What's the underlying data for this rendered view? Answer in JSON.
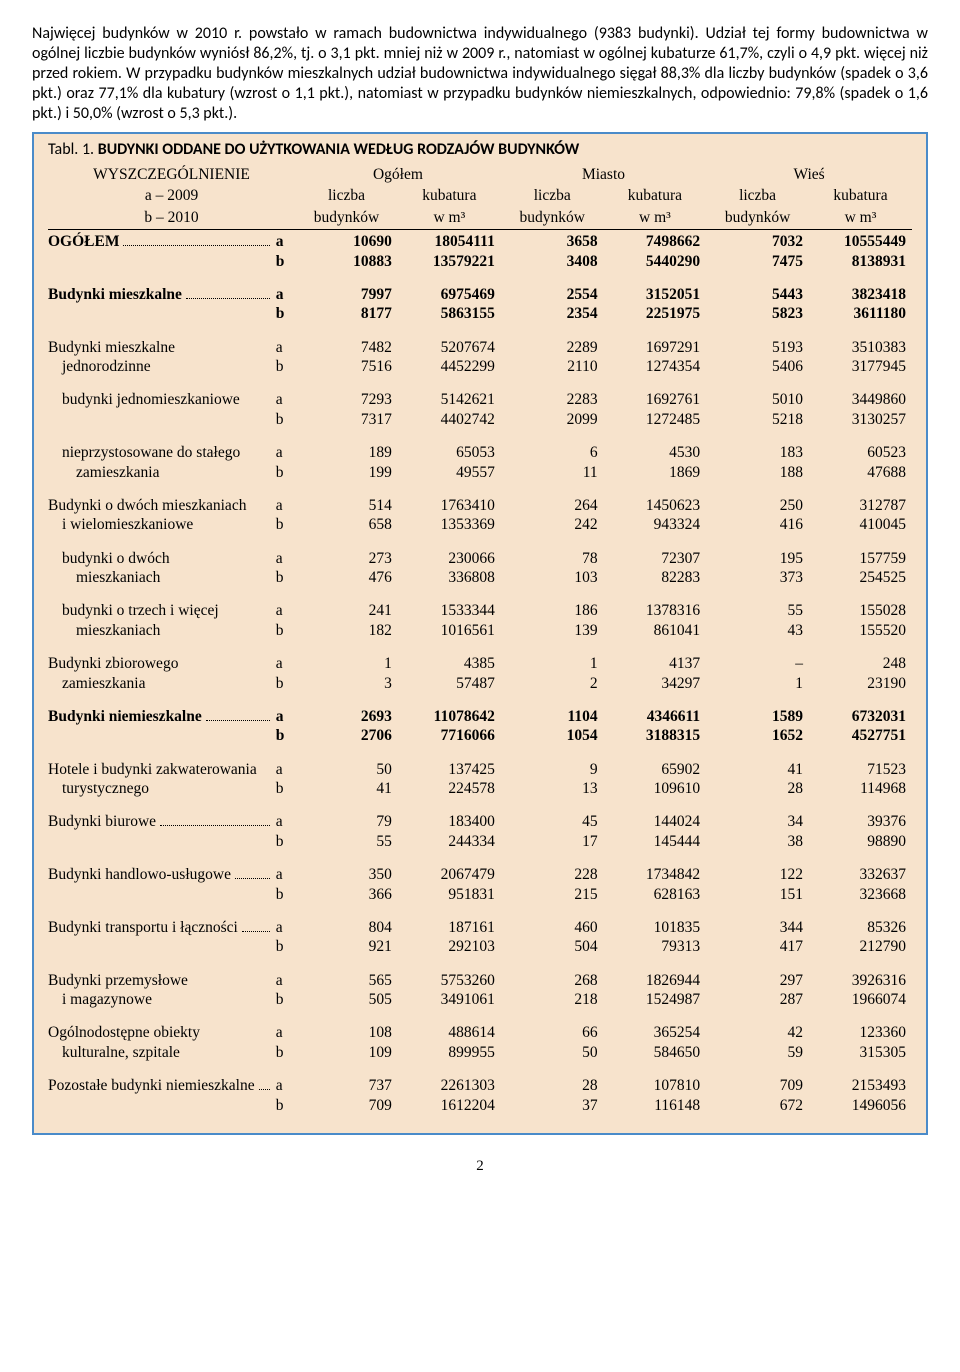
{
  "paragraphs": [
    "Najwięcej budynków w 2010 r. powstało w ramach budownictwa indywidualnego (9383 budynki). Udział tej formy budownictwa w ogólnej liczbie budynków wyniósł 86,2%, tj. o 3,1 pkt. mniej niż w 2009 r., natomiast w ogólnej kubaturze 61,7%, czyli o 4,9 pkt. więcej niż przed rokiem. W przypadku budynków mieszkalnych udział budownictwa indywidualnego sięgał 88,3% dla liczby budynków (spadek o 3,6 pkt.) oraz 77,1% dla kubatury (wzrost o 1,1 pkt.), natomiast w przypadku budynków niemieszkalnych, odpowiednio: 79,8% (spadek o 1,6 pkt.) i 50,0% (wzrost o 5,3 pkt.)."
  ],
  "table_label": "Tabl. 1.",
  "table_caption": "BUDYNKI ODDANE DO UŻYTKOWANIA WEDŁUG RODZAJÓW BUDYNKÓW",
  "header": {
    "spec": "WYSZCZEGÓLNIENIE",
    "a": "a – 2009",
    "b": "b – 2010",
    "groups": [
      "Ogółem",
      "Miasto",
      "Wieś"
    ],
    "sub1": "liczba",
    "sub1b": "budynków",
    "sub2": "kubatura",
    "sub2b": "w m³"
  },
  "rows": [
    {
      "label": "OGÓŁEM",
      "bold": true,
      "dotted": true,
      "indent": 0,
      "a": [
        "10690",
        "18054111",
        "3658",
        "7498662",
        "7032",
        "10555449"
      ],
      "b": [
        "10883",
        "13579221",
        "3408",
        "5440290",
        "7475",
        "8138931"
      ]
    },
    {
      "label": "Budynki mieszkalne",
      "bold": true,
      "dotted": true,
      "indent": 0,
      "a": [
        "7997",
        "6975469",
        "2554",
        "3152051",
        "5443",
        "3823418"
      ],
      "b": [
        "8177",
        "5863155",
        "2354",
        "2251975",
        "5823",
        "3611180"
      ]
    },
    {
      "label": "Budynki mieszkalne",
      "label2": "jednorodzinne",
      "indent": 0,
      "a": [
        "7482",
        "5207674",
        "2289",
        "1697291",
        "5193",
        "3510383"
      ],
      "b": [
        "7516",
        "4452299",
        "2110",
        "1274354",
        "5406",
        "3177945"
      ]
    },
    {
      "label": "budynki jednomieszkaniowe",
      "indent": 1,
      "a": [
        "7293",
        "5142621",
        "2283",
        "1692761",
        "5010",
        "3449860"
      ],
      "b": [
        "7317",
        "4402742",
        "2099",
        "1272485",
        "5218",
        "3130257"
      ]
    },
    {
      "label": "nieprzystosowane do stałego",
      "label2": "zamieszkania",
      "indent": 1,
      "a": [
        "189",
        "65053",
        "6",
        "4530",
        "183",
        "60523"
      ],
      "b": [
        "199",
        "49557",
        "11",
        "1869",
        "188",
        "47688"
      ]
    },
    {
      "label": "Budynki o dwóch mieszkaniach",
      "label2": "i wielomieszkaniowe",
      "indent": 0,
      "a": [
        "514",
        "1763410",
        "264",
        "1450623",
        "250",
        "312787"
      ],
      "b": [
        "658",
        "1353369",
        "242",
        "943324",
        "416",
        "410045"
      ]
    },
    {
      "label": "budynki o dwóch",
      "label2": "mieszkaniach",
      "indent": 1,
      "a": [
        "273",
        "230066",
        "78",
        "72307",
        "195",
        "157759"
      ],
      "b": [
        "476",
        "336808",
        "103",
        "82283",
        "373",
        "254525"
      ]
    },
    {
      "label": "budynki o trzech i więcej",
      "label2": "mieszkaniach",
      "indent": 1,
      "a": [
        "241",
        "1533344",
        "186",
        "1378316",
        "55",
        "155028"
      ],
      "b": [
        "182",
        "1016561",
        "139",
        "861041",
        "43",
        "155520"
      ]
    },
    {
      "label": "Budynki zbiorowego",
      "label2": "zamieszkania",
      "indent": 0,
      "a": [
        "1",
        "4385",
        "1",
        "4137",
        "–",
        "248"
      ],
      "b": [
        "3",
        "57487",
        "2",
        "34297",
        "1",
        "23190"
      ]
    },
    {
      "label": "Budynki niemieszkalne",
      "bold": true,
      "dotted": true,
      "indent": 0,
      "a": [
        "2693",
        "11078642",
        "1104",
        "4346611",
        "1589",
        "6732031"
      ],
      "b": [
        "2706",
        "7716066",
        "1054",
        "3188315",
        "1652",
        "4527751"
      ]
    },
    {
      "label": "Hotele i budynki zakwaterowania",
      "label2": "turystycznego",
      "indent": 0,
      "a": [
        "50",
        "137425",
        "9",
        "65902",
        "41",
        "71523"
      ],
      "b": [
        "41",
        "224578",
        "13",
        "109610",
        "28",
        "114968"
      ]
    },
    {
      "label": "Budynki biurowe",
      "dotted": true,
      "indent": 0,
      "a": [
        "79",
        "183400",
        "45",
        "144024",
        "34",
        "39376"
      ],
      "b": [
        "55",
        "244334",
        "17",
        "145444",
        "38",
        "98890"
      ]
    },
    {
      "label": "Budynki handlowo-usługowe",
      "dotted": true,
      "indent": 0,
      "a": [
        "350",
        "2067479",
        "228",
        "1734842",
        "122",
        "332637"
      ],
      "b": [
        "366",
        "951831",
        "215",
        "628163",
        "151",
        "323668"
      ]
    },
    {
      "label": "Budynki transportu i łączności",
      "dotted": true,
      "indent": 0,
      "a": [
        "804",
        "187161",
        "460",
        "101835",
        "344",
        "85326"
      ],
      "b": [
        "921",
        "292103",
        "504",
        "79313",
        "417",
        "212790"
      ]
    },
    {
      "label": "Budynki przemysłowe",
      "label2": "i magazynowe",
      "indent": 0,
      "a": [
        "565",
        "5753260",
        "268",
        "1826944",
        "297",
        "3926316"
      ],
      "b": [
        "505",
        "3491061",
        "218",
        "1524987",
        "287",
        "1966074"
      ]
    },
    {
      "label": "Ogólnodostępne obiekty",
      "label2": "kulturalne, szpitale",
      "indent": 0,
      "a": [
        "108",
        "488614",
        "66",
        "365254",
        "42",
        "123360"
      ],
      "b": [
        "109",
        "899955",
        "50",
        "584650",
        "59",
        "315305"
      ]
    },
    {
      "label": "Pozostałe budynki niemieszkalne",
      "dotted": true,
      "indent": 0,
      "a": [
        "737",
        "2261303",
        "28",
        "107810",
        "709",
        "2153493"
      ],
      "b": [
        "709",
        "1612204",
        "37",
        "116148",
        "672",
        "1496056"
      ]
    }
  ],
  "page_number": "2"
}
